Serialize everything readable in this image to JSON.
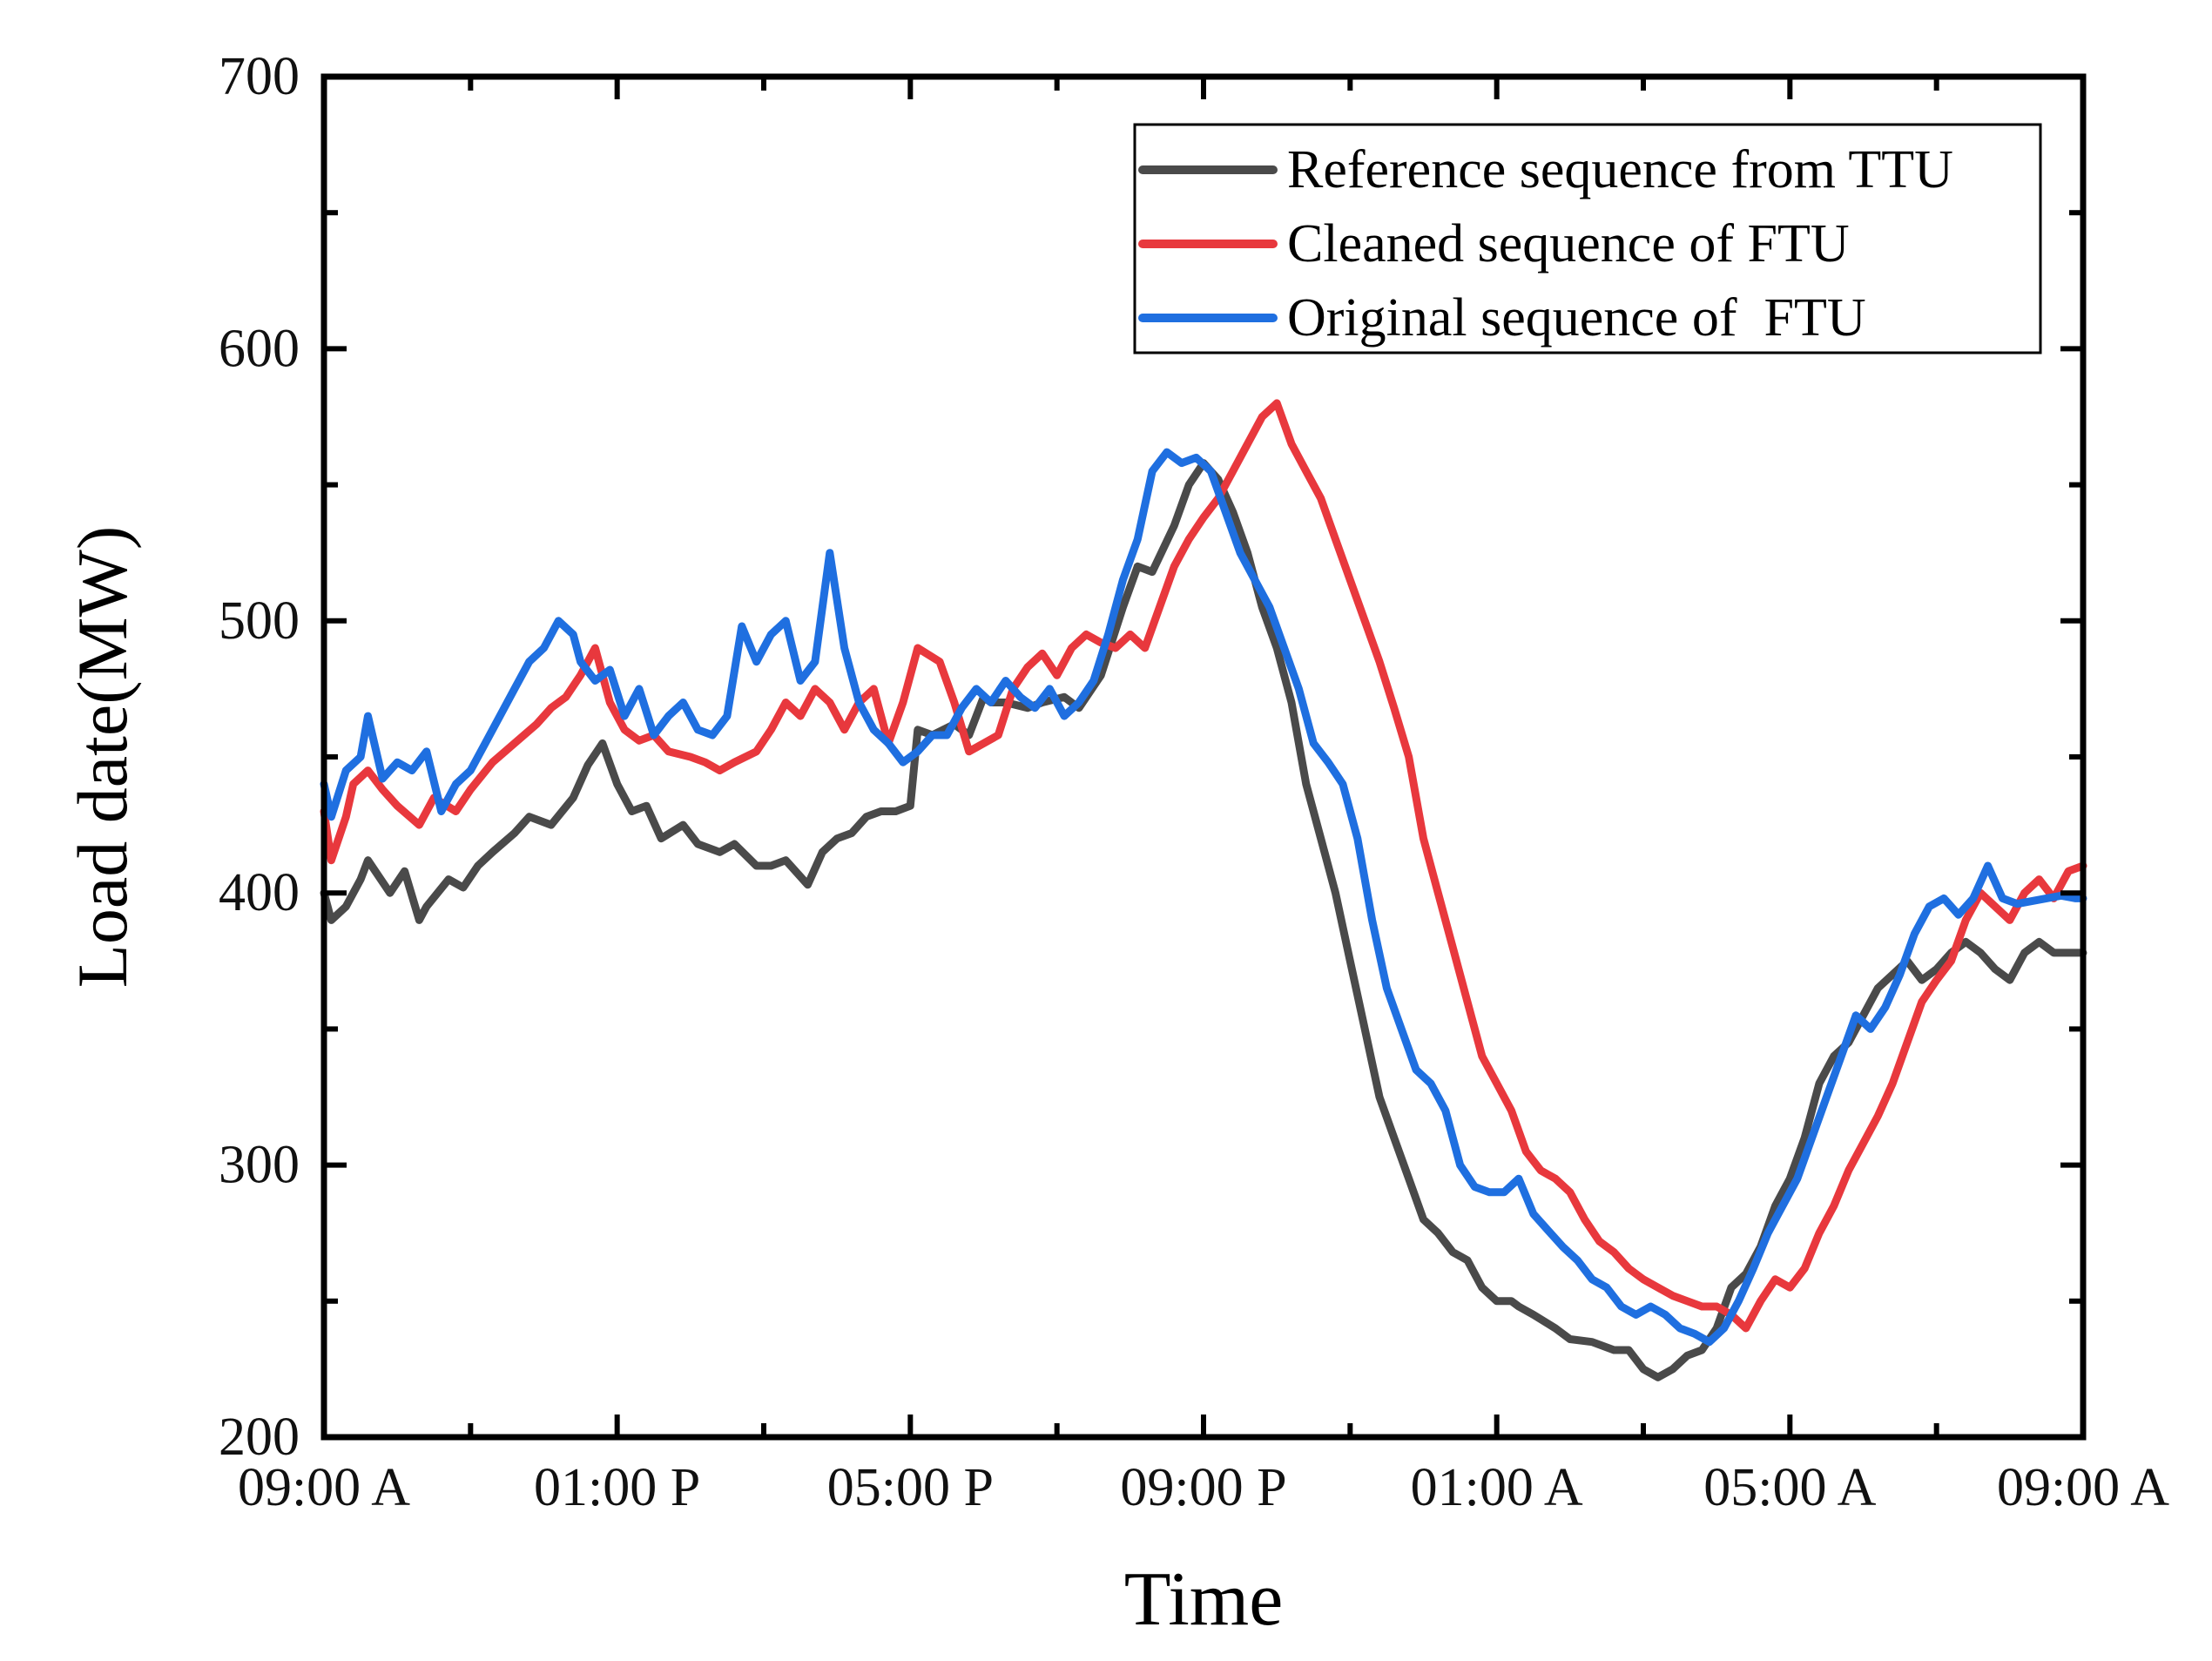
{
  "chart_data": {
    "type": "line",
    "title": "",
    "xlabel": "Time",
    "ylabel": "Load date(MW)",
    "ylim": [
      200,
      700
    ],
    "yticks": [
      200,
      300,
      400,
      500,
      600,
      700
    ],
    "xlim": [
      0,
      24
    ],
    "x_unit": "hours after 09:00 A",
    "xticks": [
      0,
      4,
      8,
      12,
      16,
      20,
      24
    ],
    "xtick_labels": [
      "09:00 A",
      "01:00 P",
      "05:00 P",
      "09:00 P",
      "01:00 A",
      "05:00 A",
      "09:00 A"
    ],
    "grid": false,
    "legend_position": "top-right",
    "series": [
      {
        "name": "Reference sequence from TTU",
        "color": "#4a4a4a",
        "x": [
          0,
          0.1,
          0.3,
          0.5,
          0.6,
          0.9,
          1.1,
          1.3,
          1.4,
          1.7,
          1.9,
          2.1,
          2.3,
          2.6,
          2.8,
          3.1,
          3.4,
          3.6,
          3.8,
          4.0,
          4.2,
          4.4,
          4.6,
          4.9,
          5.1,
          5.4,
          5.6,
          5.9,
          6.1,
          6.3,
          6.6,
          6.8,
          7.0,
          7.2,
          7.4,
          7.6,
          7.8,
          8.0,
          8.1,
          8.3,
          8.6,
          8.8,
          9.0,
          9.1,
          9.3,
          9.6,
          9.8,
          10.1,
          10.3,
          10.6,
          10.9,
          11.1,
          11.3,
          11.6,
          11.8,
          12.0,
          12.2,
          12.4,
          12.6,
          12.8,
          13.0,
          13.2,
          13.4,
          13.6,
          13.8,
          14.0,
          14.2,
          14.4,
          14.6,
          14.8,
          15.0,
          15.2,
          15.4,
          15.6,
          15.8,
          16.0,
          16.2,
          16.3,
          16.5,
          16.8,
          17.0,
          17.3,
          17.6,
          17.8,
          18.0,
          18.2,
          18.4,
          18.6,
          18.8,
          19.0,
          19.2,
          19.4,
          19.6,
          19.8,
          20.0,
          20.2,
          20.4,
          20.6,
          20.8,
          21.0,
          21.2,
          21.4,
          21.6,
          21.8,
          22.0,
          22.2,
          22.4,
          22.6,
          22.8,
          23.0,
          23.2,
          23.4,
          23.6,
          23.8,
          24.0
        ],
        "values": [
          400,
          390,
          395,
          405,
          412,
          400,
          408,
          390,
          395,
          405,
          402,
          410,
          415,
          422,
          428,
          425,
          435,
          447,
          455,
          440,
          430,
          432,
          420,
          425,
          418,
          415,
          418,
          410,
          410,
          412,
          403,
          415,
          420,
          422,
          428,
          430,
          430,
          432,
          460,
          458,
          462,
          458,
          472,
          470,
          470,
          468,
          470,
          472,
          468,
          480,
          505,
          520,
          518,
          535,
          550,
          558,
          552,
          540,
          525,
          505,
          490,
          470,
          440,
          420,
          400,
          375,
          350,
          325,
          310,
          295,
          280,
          275,
          268,
          265,
          255,
          250,
          250,
          248,
          245,
          240,
          236,
          235,
          232,
          232,
          225,
          222,
          225,
          230,
          232,
          240,
          255,
          260,
          270,
          285,
          295,
          310,
          330,
          340,
          345,
          355,
          365,
          370,
          375,
          368,
          372,
          378,
          382,
          378,
          372,
          368,
          378,
          382,
          378,
          378,
          378
        ]
      },
      {
        "name": "Cleaned sequence of FTU",
        "color": "#e8383d",
        "x": [
          0,
          0.1,
          0.3,
          0.4,
          0.6,
          0.8,
          1.0,
          1.3,
          1.5,
          1.8,
          2.0,
          2.3,
          2.6,
          2.9,
          3.1,
          3.3,
          3.5,
          3.7,
          3.9,
          4.1,
          4.3,
          4.5,
          4.7,
          5.0,
          5.2,
          5.4,
          5.6,
          5.9,
          6.1,
          6.3,
          6.5,
          6.7,
          6.9,
          7.1,
          7.3,
          7.5,
          7.7,
          7.9,
          8.1,
          8.4,
          8.6,
          8.8,
          9.0,
          9.2,
          9.4,
          9.6,
          9.8,
          10.0,
          10.2,
          10.4,
          10.6,
          10.8,
          11.0,
          11.2,
          11.4,
          11.6,
          11.8,
          12.0,
          12.2,
          12.4,
          12.6,
          12.8,
          13.0,
          13.2,
          13.4,
          13.6,
          13.8,
          14.0,
          14.2,
          14.4,
          14.6,
          14.8,
          15.0,
          15.2,
          15.4,
          15.6,
          15.8,
          16.0,
          16.2,
          16.4,
          16.6,
          16.8,
          17.0,
          17.2,
          17.4,
          17.6,
          17.8,
          18.0,
          18.2,
          18.4,
          18.6,
          18.8,
          19.0,
          19.2,
          19.4,
          19.6,
          19.8,
          20.0,
          20.2,
          20.4,
          20.6,
          20.8,
          21.0,
          21.2,
          21.4,
          21.6,
          21.8,
          22.0,
          22.2,
          22.4,
          22.6,
          22.8,
          23.0,
          23.2,
          23.4,
          23.6,
          23.8,
          24.0
        ],
        "values": [
          430,
          412,
          428,
          440,
          445,
          438,
          432,
          425,
          435,
          430,
          438,
          448,
          455,
          462,
          468,
          472,
          480,
          490,
          470,
          460,
          456,
          458,
          452,
          450,
          448,
          445,
          448,
          452,
          460,
          470,
          465,
          475,
          470,
          460,
          470,
          475,
          455,
          470,
          490,
          485,
          470,
          452,
          455,
          458,
          475,
          483,
          488,
          480,
          490,
          495,
          492,
          490,
          495,
          490,
          505,
          520,
          530,
          538,
          545,
          555,
          565,
          575,
          580,
          565,
          555,
          545,
          530,
          515,
          500,
          485,
          468,
          450,
          420,
          400,
          380,
          360,
          340,
          330,
          320,
          305,
          298,
          295,
          290,
          280,
          272,
          268,
          262,
          258,
          255,
          252,
          250,
          248,
          248,
          245,
          240,
          250,
          258,
          255,
          262,
          275,
          285,
          298,
          308,
          318,
          330,
          345,
          360,
          368,
          375,
          390,
          400,
          395,
          390,
          400,
          405,
          398,
          408,
          410
        ]
      },
      {
        "name": "Original sequence of  FTU",
        "color": "#1f6fe0",
        "x": [
          0,
          0.1,
          0.3,
          0.5,
          0.6,
          0.8,
          1.0,
          1.2,
          1.4,
          1.6,
          1.8,
          2.0,
          2.2,
          2.4,
          2.6,
          2.8,
          3.0,
          3.2,
          3.4,
          3.5,
          3.7,
          3.9,
          4.1,
          4.3,
          4.5,
          4.7,
          4.9,
          5.1,
          5.3,
          5.5,
          5.7,
          5.9,
          6.1,
          6.3,
          6.5,
          6.7,
          6.9,
          7.1,
          7.3,
          7.5,
          7.7,
          7.9,
          8.1,
          8.3,
          8.5,
          8.7,
          8.9,
          9.1,
          9.3,
          9.5,
          9.7,
          9.9,
          10.1,
          10.3,
          10.5,
          10.7,
          10.9,
          11.1,
          11.3,
          11.5,
          11.7,
          11.9,
          12.1,
          12.3,
          12.5,
          12.7,
          12.9,
          13.1,
          13.3,
          13.5,
          13.7,
          13.9,
          14.1,
          14.3,
          14.5,
          14.7,
          14.9,
          15.1,
          15.3,
          15.5,
          15.7,
          15.9,
          16.1,
          16.3,
          16.5,
          16.7,
          16.9,
          17.1,
          17.3,
          17.5,
          17.7,
          17.9,
          18.1,
          18.3,
          18.5,
          18.7,
          18.9,
          19.1,
          19.3,
          19.5,
          19.7,
          19.9,
          20.1,
          20.3,
          20.5,
          20.7,
          20.9,
          21.1,
          21.3,
          21.5,
          21.7,
          21.9,
          22.1,
          22.3,
          22.5,
          22.7,
          22.9,
          23.1,
          23.3,
          23.5,
          23.7,
          23.9,
          24.0
        ],
        "values": [
          440,
          428,
          445,
          450,
          465,
          442,
          448,
          445,
          452,
          430,
          440,
          445,
          455,
          465,
          475,
          485,
          490,
          500,
          495,
          485,
          478,
          482,
          465,
          475,
          458,
          465,
          470,
          460,
          458,
          465,
          498,
          485,
          495,
          500,
          478,
          485,
          525,
          490,
          470,
          460,
          455,
          448,
          452,
          458,
          458,
          468,
          475,
          470,
          478,
          472,
          468,
          475,
          465,
          470,
          478,
          495,
          515,
          530,
          555,
          562,
          558,
          560,
          555,
          540,
          525,
          515,
          505,
          490,
          475,
          455,
          448,
          440,
          420,
          390,
          365,
          350,
          335,
          330,
          320,
          300,
          292,
          290,
          290,
          295,
          282,
          276,
          270,
          265,
          258,
          255,
          248,
          245,
          248,
          245,
          240,
          238,
          235,
          240,
          250,
          262,
          275,
          285,
          295,
          310,
          325,
          340,
          355,
          350,
          358,
          370,
          385,
          395,
          398,
          392,
          398,
          410,
          398,
          396,
          397,
          398,
          399,
          398,
          398
        ]
      }
    ]
  }
}
